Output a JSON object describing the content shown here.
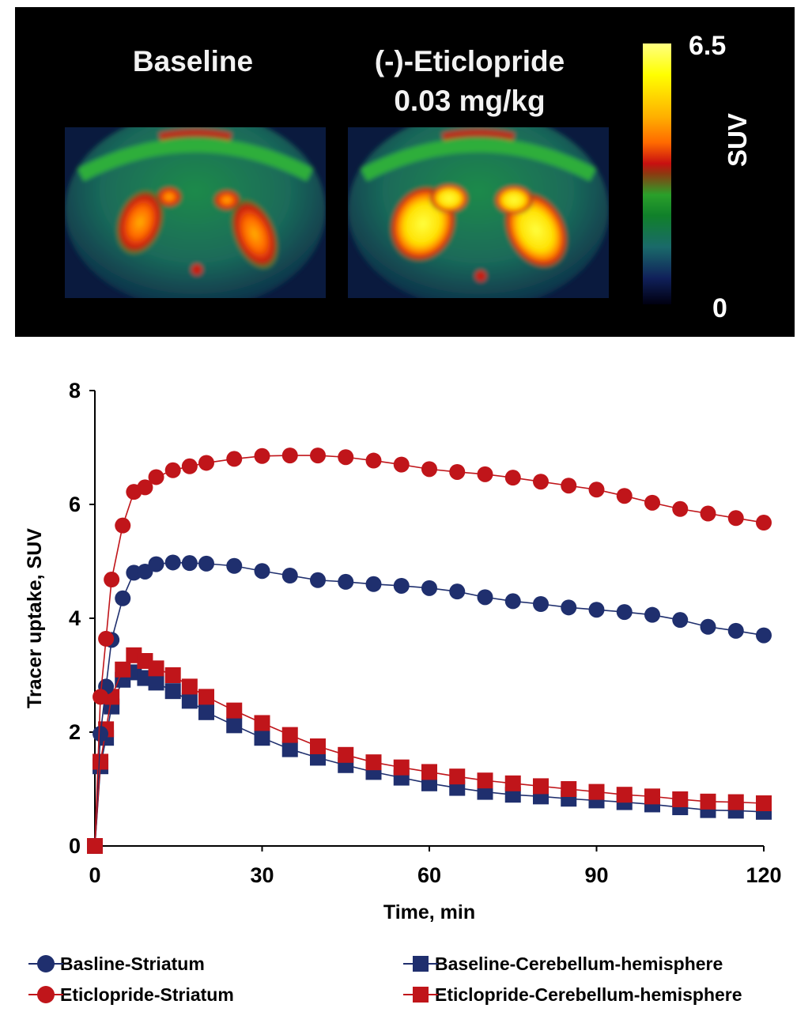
{
  "pet_panel": {
    "baseline_title": "Baseline",
    "eticlopride_title": "(-)-Eticlopride",
    "eticlopride_dose": "0.03 mg/kg",
    "colorbar": {
      "max_label": "6.5",
      "min_label": "0",
      "unit_label": "SUV"
    }
  },
  "chart_data": {
    "type": "line",
    "title": "",
    "xlabel": "Time, min",
    "ylabel": "Tracer uptake, SUV",
    "xlim": [
      0,
      120
    ],
    "ylim": [
      0,
      8
    ],
    "xticks": [
      0,
      30,
      60,
      90,
      120
    ],
    "yticks": [
      0,
      2,
      4,
      6,
      8
    ],
    "grid": false,
    "legend_position": "bottom",
    "x": [
      0,
      1,
      2,
      3,
      5,
      7,
      9,
      11,
      14,
      17,
      20,
      25,
      30,
      35,
      40,
      45,
      50,
      55,
      60,
      65,
      70,
      75,
      80,
      85,
      90,
      95,
      100,
      105,
      110,
      115,
      120
    ],
    "series": [
      {
        "name": "Basline-Striatum",
        "marker": "circle",
        "color": "#1f2f6e",
        "values": [
          0,
          1.97,
          2.8,
          3.62,
          4.35,
          4.8,
          4.82,
          4.95,
          4.98,
          4.97,
          4.96,
          4.92,
          4.83,
          4.75,
          4.67,
          4.64,
          4.6,
          4.57,
          4.53,
          4.47,
          4.37,
          4.3,
          4.25,
          4.19,
          4.15,
          4.11,
          4.06,
          3.97,
          3.85,
          3.78,
          3.7
        ]
      },
      {
        "name": "Eticlopride-Striatum",
        "marker": "circle",
        "color": "#c0151a",
        "values": [
          0,
          2.62,
          3.64,
          4.68,
          5.63,
          6.22,
          6.3,
          6.48,
          6.6,
          6.67,
          6.73,
          6.8,
          6.85,
          6.86,
          6.86,
          6.83,
          6.77,
          6.7,
          6.62,
          6.57,
          6.53,
          6.47,
          6.4,
          6.33,
          6.26,
          6.15,
          6.03,
          5.92,
          5.84,
          5.76,
          5.68
        ]
      },
      {
        "name": "Baseline-Cerebellum-hemisphere",
        "marker": "square",
        "color": "#1f2f6e",
        "values": [
          0,
          1.4,
          1.9,
          2.45,
          2.92,
          3.05,
          2.95,
          2.87,
          2.72,
          2.55,
          2.35,
          2.12,
          1.9,
          1.7,
          1.55,
          1.42,
          1.3,
          1.2,
          1.1,
          1.02,
          0.95,
          0.9,
          0.87,
          0.83,
          0.8,
          0.77,
          0.73,
          0.68,
          0.63,
          0.62,
          0.6
        ]
      },
      {
        "name": "Eticlopride-Cerebellum-hemisphere",
        "marker": "square",
        "color": "#c0151a",
        "values": [
          0,
          1.48,
          2.05,
          2.62,
          3.1,
          3.35,
          3.25,
          3.12,
          3.0,
          2.8,
          2.62,
          2.38,
          2.16,
          1.95,
          1.75,
          1.6,
          1.47,
          1.38,
          1.3,
          1.22,
          1.15,
          1.1,
          1.05,
          1.0,
          0.95,
          0.9,
          0.87,
          0.82,
          0.78,
          0.77,
          0.75
        ]
      }
    ]
  }
}
